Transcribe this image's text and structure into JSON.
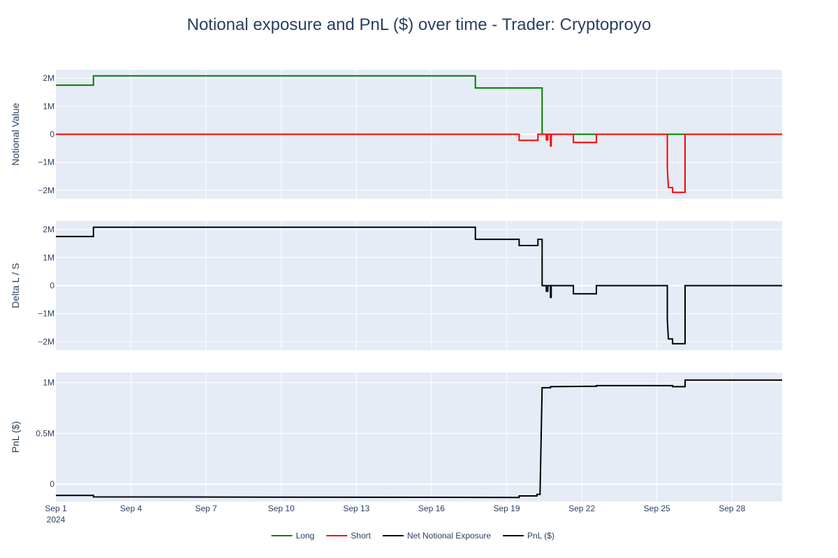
{
  "chart_data": {
    "type": "line",
    "title": "Notional exposure and PnL ($) over time - Trader: Cryptoproyo",
    "x_axis": {
      "range": [
        "2024-09-01",
        "2024-09-30T00:00"
      ],
      "ticks": [
        {
          "date": "2024-09-01",
          "label": "Sep 1",
          "sublabel": "2024"
        },
        {
          "date": "2024-09-04",
          "label": "Sep 4"
        },
        {
          "date": "2024-09-07",
          "label": "Sep 7"
        },
        {
          "date": "2024-09-10",
          "label": "Sep 10"
        },
        {
          "date": "2024-09-13",
          "label": "Sep 13"
        },
        {
          "date": "2024-09-16",
          "label": "Sep 16"
        },
        {
          "date": "2024-09-19",
          "label": "Sep 19"
        },
        {
          "date": "2024-09-22",
          "label": "Sep 22"
        },
        {
          "date": "2024-09-25",
          "label": "Sep 25"
        },
        {
          "date": "2024-09-28",
          "label": "Sep 28"
        }
      ]
    },
    "panels": [
      {
        "ylabel": "Notional Value",
        "ylim": [
          -2300000,
          2300000
        ],
        "yticks": [
          {
            "v": 2000000,
            "label": "2M"
          },
          {
            "v": 1000000,
            "label": "1M"
          },
          {
            "v": 0,
            "label": "0"
          },
          {
            "v": -1000000,
            "label": "−1M"
          },
          {
            "v": -2000000,
            "label": "−2M"
          }
        ],
        "series": [
          {
            "name": "Long",
            "color": "#008000",
            "points": [
              [
                "2024-09-01",
                1750000
              ],
              [
                "2024-09-02T12:00",
                1750000
              ],
              [
                "2024-09-02T12:00",
                2080000
              ],
              [
                "2024-09-17T18:00",
                2080000
              ],
              [
                "2024-09-17T18:00",
                1650000
              ],
              [
                "2024-09-20T10:00",
                1650000
              ],
              [
                "2024-09-20T10:00",
                0
              ],
              [
                "2024-09-30T00:00",
                0
              ]
            ]
          },
          {
            "name": "Short",
            "color": "#ff0000",
            "points": [
              [
                "2024-09-01",
                0
              ],
              [
                "2024-09-19T12:00",
                0
              ],
              [
                "2024-09-19T12:00",
                -220000
              ],
              [
                "2024-09-20T06:00",
                -220000
              ],
              [
                "2024-09-20T06:00",
                0
              ],
              [
                "2024-09-20T14:00",
                0
              ],
              [
                "2024-09-20T14:00",
                -200000
              ],
              [
                "2024-09-20T15:30",
                -200000
              ],
              [
                "2024-09-20T15:30",
                0
              ],
              [
                "2024-09-20T18:00",
                0
              ],
              [
                "2024-09-20T18:00",
                -420000
              ],
              [
                "2024-09-20T18:40",
                -420000
              ],
              [
                "2024-09-20T18:40",
                0
              ],
              [
                "2024-09-21T16:00",
                0
              ],
              [
                "2024-09-21T16:00",
                -290000
              ],
              [
                "2024-09-22T14:00",
                -290000
              ],
              [
                "2024-09-22T14:00",
                0
              ],
              [
                "2024-09-25T10:00",
                0
              ],
              [
                "2024-09-25T10:00",
                -1200000
              ],
              [
                "2024-09-25T11:00",
                -1900000
              ],
              [
                "2024-09-25T15:00",
                -1900000
              ],
              [
                "2024-09-25T15:00",
                -2070000
              ],
              [
                "2024-09-26T03:00",
                -2070000
              ],
              [
                "2024-09-26T03:00",
                0
              ],
              [
                "2024-09-30T00:00",
                0
              ]
            ]
          }
        ]
      },
      {
        "ylabel": "Delta L / S",
        "ylim": [
          -2300000,
          2300000
        ],
        "yticks": [
          {
            "v": 2000000,
            "label": "2M"
          },
          {
            "v": 1000000,
            "label": "1M"
          },
          {
            "v": 0,
            "label": "0"
          },
          {
            "v": -1000000,
            "label": "−1M"
          },
          {
            "v": -2000000,
            "label": "−2M"
          }
        ],
        "series": [
          {
            "name": "Net Notional Exposure",
            "color": "#000000",
            "points": [
              [
                "2024-09-01",
                1750000
              ],
              [
                "2024-09-02T12:00",
                1750000
              ],
              [
                "2024-09-02T12:00",
                2080000
              ],
              [
                "2024-09-17T18:00",
                2080000
              ],
              [
                "2024-09-17T18:00",
                1650000
              ],
              [
                "2024-09-19T12:00",
                1650000
              ],
              [
                "2024-09-19T12:00",
                1430000
              ],
              [
                "2024-09-20T06:00",
                1430000
              ],
              [
                "2024-09-20T06:00",
                1650000
              ],
              [
                "2024-09-20T10:00",
                1650000
              ],
              [
                "2024-09-20T10:00",
                0
              ],
              [
                "2024-09-20T14:00",
                0
              ],
              [
                "2024-09-20T14:00",
                -200000
              ],
              [
                "2024-09-20T15:30",
                -200000
              ],
              [
                "2024-09-20T15:30",
                0
              ],
              [
                "2024-09-20T18:00",
                0
              ],
              [
                "2024-09-20T18:00",
                -420000
              ],
              [
                "2024-09-20T18:40",
                -420000
              ],
              [
                "2024-09-20T18:40",
                0
              ],
              [
                "2024-09-21T16:00",
                0
              ],
              [
                "2024-09-21T16:00",
                -290000
              ],
              [
                "2024-09-22T14:00",
                -290000
              ],
              [
                "2024-09-22T14:00",
                0
              ],
              [
                "2024-09-25T10:00",
                0
              ],
              [
                "2024-09-25T10:00",
                -1200000
              ],
              [
                "2024-09-25T11:00",
                -1900000
              ],
              [
                "2024-09-25T15:00",
                -1900000
              ],
              [
                "2024-09-25T15:00",
                -2070000
              ],
              [
                "2024-09-26T03:00",
                -2070000
              ],
              [
                "2024-09-26T03:00",
                0
              ],
              [
                "2024-09-30T00:00",
                0
              ]
            ]
          }
        ]
      },
      {
        "ylabel": "PnL ($)",
        "ylim": [
          -170000,
          1100000
        ],
        "yticks": [
          {
            "v": 1000000,
            "label": "1M"
          },
          {
            "v": 500000,
            "label": "0.5M"
          },
          {
            "v": 0,
            "label": "0"
          }
        ],
        "series": [
          {
            "name": "PnL ($)",
            "color": "#000000",
            "points": [
              [
                "2024-09-01",
                -110000
              ],
              [
                "2024-09-02T12:00",
                -110000
              ],
              [
                "2024-09-02T12:00",
                -125000
              ],
              [
                "2024-09-19T12:00",
                -130000
              ],
              [
                "2024-09-19T12:00",
                -115000
              ],
              [
                "2024-09-20T05:00",
                -115000
              ],
              [
                "2024-09-20T05:00",
                -100000
              ],
              [
                "2024-09-20T08:00",
                -100000
              ],
              [
                "2024-09-20T10:00",
                950000
              ],
              [
                "2024-09-20T18:00",
                950000
              ],
              [
                "2024-09-20T18:00",
                960000
              ],
              [
                "2024-09-22T14:00",
                965000
              ],
              [
                "2024-09-22T14:00",
                970000
              ],
              [
                "2024-09-25T15:00",
                970000
              ],
              [
                "2024-09-25T15:00",
                960000
              ],
              [
                "2024-09-26T03:00",
                960000
              ],
              [
                "2024-09-26T03:00",
                1025000
              ],
              [
                "2024-09-30T00:00",
                1025000
              ]
            ]
          }
        ]
      }
    ],
    "legend": {
      "position": "bottom-center",
      "entries": [
        {
          "name": "Long",
          "color": "#008000"
        },
        {
          "name": "Short",
          "color": "#ff0000"
        },
        {
          "name": "Net Notional Exposure",
          "color": "#000000"
        },
        {
          "name": "PnL ($)",
          "color": "#000000"
        }
      ]
    },
    "plot_background": "#e5ecf6",
    "grid": true
  }
}
